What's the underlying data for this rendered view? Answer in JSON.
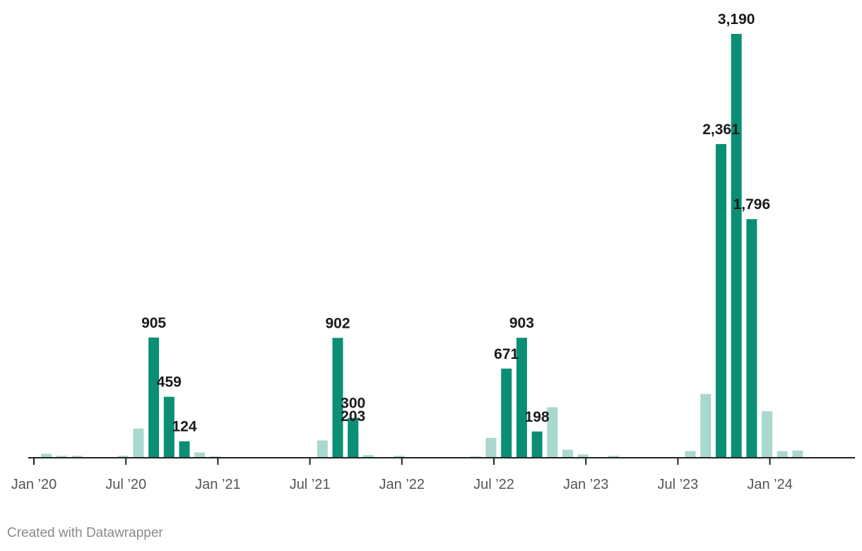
{
  "chart_data": {
    "type": "bar",
    "x_start": "2020-01",
    "categories": [
      "Jan 2020",
      "Feb 2020",
      "Mar 2020",
      "Apr 2020",
      "May 2020",
      "Jun 2020",
      "Jul 2020",
      "Aug 2020",
      "Sep 2020",
      "Oct 2020",
      "Nov 2020",
      "Dec 2020",
      "Jan 2021",
      "Feb 2021",
      "Mar 2021",
      "Apr 2021",
      "May 2021",
      "Jun 2021",
      "Jul 2021",
      "Aug 2021",
      "Sep 2021",
      "Oct 2021",
      "Nov 2021",
      "Dec 2021",
      "Jan 2022",
      "Feb 2022",
      "Mar 2022",
      "Apr 2022",
      "May 2022",
      "Jun 2022",
      "Jul 2022",
      "Aug 2022",
      "Sep 2022",
      "Oct 2022",
      "Nov 2022",
      "Dec 2022",
      "Jan 2023",
      "Feb 2023",
      "Mar 2023",
      "Apr 2023",
      "May 2023",
      "Jun 2023",
      "Jul 2023",
      "Aug 2023",
      "Sep 2023",
      "Oct 2023",
      "Nov 2023",
      "Dec 2023",
      "Jan 2024",
      "Feb 2024",
      "Mar 2024",
      "Apr 2024",
      "May 2024",
      "Jun 2024"
    ],
    "values": [
      30,
      15,
      15,
      0,
      0,
      15,
      220,
      905,
      459,
      124,
      40,
      10,
      0,
      0,
      0,
      0,
      0,
      0,
      0,
      0,
      0,
      130,
      902,
      300,
      203,
      20,
      0,
      15,
      0,
      0,
      0,
      0,
      10,
      150,
      671,
      903,
      198,
      380,
      60,
      25,
      0,
      15,
      0,
      0,
      0,
      0,
      50,
      480,
      2361,
      3190,
      1796,
      350,
      50,
      55
    ],
    "values_aligned_note": "",
    "highlighted": [
      0,
      0,
      0,
      0,
      0,
      0,
      0,
      1,
      1,
      1,
      0,
      0,
      0,
      0,
      0,
      0,
      0,
      0,
      0,
      0,
      0,
      0,
      1,
      1,
      1,
      0,
      0,
      0,
      0,
      0,
      0,
      0,
      0,
      0,
      1,
      1,
      1,
      0,
      0,
      0,
      0,
      0,
      0,
      0,
      0,
      0,
      0,
      0,
      1,
      1,
      1,
      0,
      0,
      0
    ],
    "data_labels": [
      "",
      "",
      "",
      "",
      "",
      "",
      "",
      "905",
      "459",
      "124",
      "",
      "",
      "",
      "",
      "",
      "",
      "",
      "",
      "",
      "",
      "",
      "",
      "902",
      "300",
      "203",
      "",
      "",
      "",
      "",
      "",
      "",
      "",
      "",
      "",
      "671",
      "903",
      "198",
      "",
      "",
      "",
      "",
      "",
      "",
      "",
      "",
      "",
      "",
      "",
      "2,361",
      "3,190",
      "1,796",
      "",
      "",
      ""
    ],
    "x_ticks": [
      "Jan ’20",
      "Jul ’20",
      "Jan ’21",
      "Jul ’21",
      "Jan ’22",
      "Jul ’22",
      "Jan ’23",
      "Jul ’23",
      "Jan ’24"
    ],
    "ylim": [
      0,
      3190
    ],
    "grid": false,
    "colors": {
      "highlight": "#0a8f74",
      "muted": "#a8d8ce",
      "axis": "#222222",
      "label": "#1a1a1a"
    }
  },
  "footer": {
    "credit": "Created with Datawrapper"
  }
}
